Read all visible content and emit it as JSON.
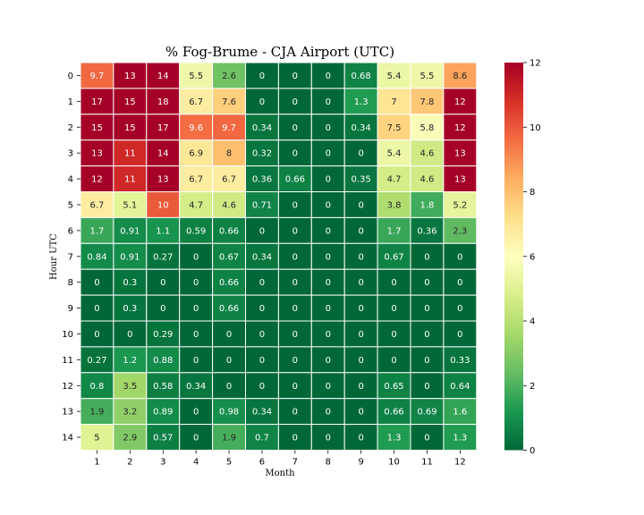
{
  "chart_data": {
    "type": "heatmap",
    "title": "% Fog-Brume - CJA Airport (UTC)",
    "xlabel": "Month",
    "ylabel": "Hour UTC",
    "x": [
      "1",
      "2",
      "3",
      "4",
      "5",
      "6",
      "7",
      "8",
      "9",
      "10",
      "11",
      "12"
    ],
    "y": [
      "0",
      "1",
      "2",
      "3",
      "4",
      "5",
      "6",
      "7",
      "8",
      "9",
      "10",
      "11",
      "12",
      "13",
      "14"
    ],
    "values": [
      [
        9.7,
        13,
        14,
        5.5,
        2.6,
        0,
        0,
        0,
        0.68,
        5.4,
        5.5,
        8.6
      ],
      [
        17,
        15,
        18,
        6.7,
        7.6,
        0,
        0,
        0,
        1.3,
        7,
        7.8,
        12
      ],
      [
        15,
        15,
        17,
        9.6,
        9.7,
        0.34,
        0,
        0,
        0.34,
        7.5,
        5.8,
        12
      ],
      [
        13,
        11,
        14,
        6.9,
        8,
        0.32,
        0,
        0,
        0,
        5.4,
        4.6,
        13
      ],
      [
        12,
        11,
        13,
        6.7,
        6.7,
        0.36,
        0.66,
        0,
        0.35,
        4.7,
        4.6,
        13
      ],
      [
        6.7,
        5.1,
        10,
        4.7,
        4.6,
        0.71,
        0,
        0,
        0,
        3.8,
        1.8,
        5.2
      ],
      [
        1.7,
        0.91,
        1.1,
        0.59,
        0.66,
        0,
        0,
        0,
        0,
        1.7,
        0.36,
        2.3
      ],
      [
        0.84,
        0.91,
        0.27,
        0,
        0.67,
        0.34,
        0,
        0,
        0,
        0.67,
        0,
        0
      ],
      [
        0,
        0.3,
        0,
        0,
        0.66,
        0,
        0,
        0,
        0,
        0,
        0,
        0
      ],
      [
        0,
        0.3,
        0,
        0,
        0.66,
        0,
        0,
        0,
        0,
        0,
        0,
        0
      ],
      [
        0,
        0,
        0.29,
        0,
        0,
        0,
        0,
        0,
        0,
        0,
        0,
        0
      ],
      [
        0.27,
        1.2,
        0.88,
        0,
        0,
        0,
        0,
        0,
        0,
        0,
        0,
        0.33
      ],
      [
        0.8,
        3.5,
        0.58,
        0.34,
        0,
        0,
        0,
        0,
        0,
        0.65,
        0,
        0.64
      ],
      [
        1.9,
        3.2,
        0.89,
        0,
        0.98,
        0.34,
        0,
        0,
        0,
        0.66,
        0.69,
        1.6
      ],
      [
        5,
        2.9,
        0.57,
        0,
        1.9,
        0.7,
        0,
        0,
        0,
        1.3,
        0,
        1.3
      ]
    ],
    "vmin": 0,
    "vmax": 12,
    "colormap": "RdYlGn_r",
    "colorbar_ticks": [
      0,
      2,
      4,
      6,
      8,
      10,
      12
    ],
    "grid_lines_color": "#ffffff"
  }
}
